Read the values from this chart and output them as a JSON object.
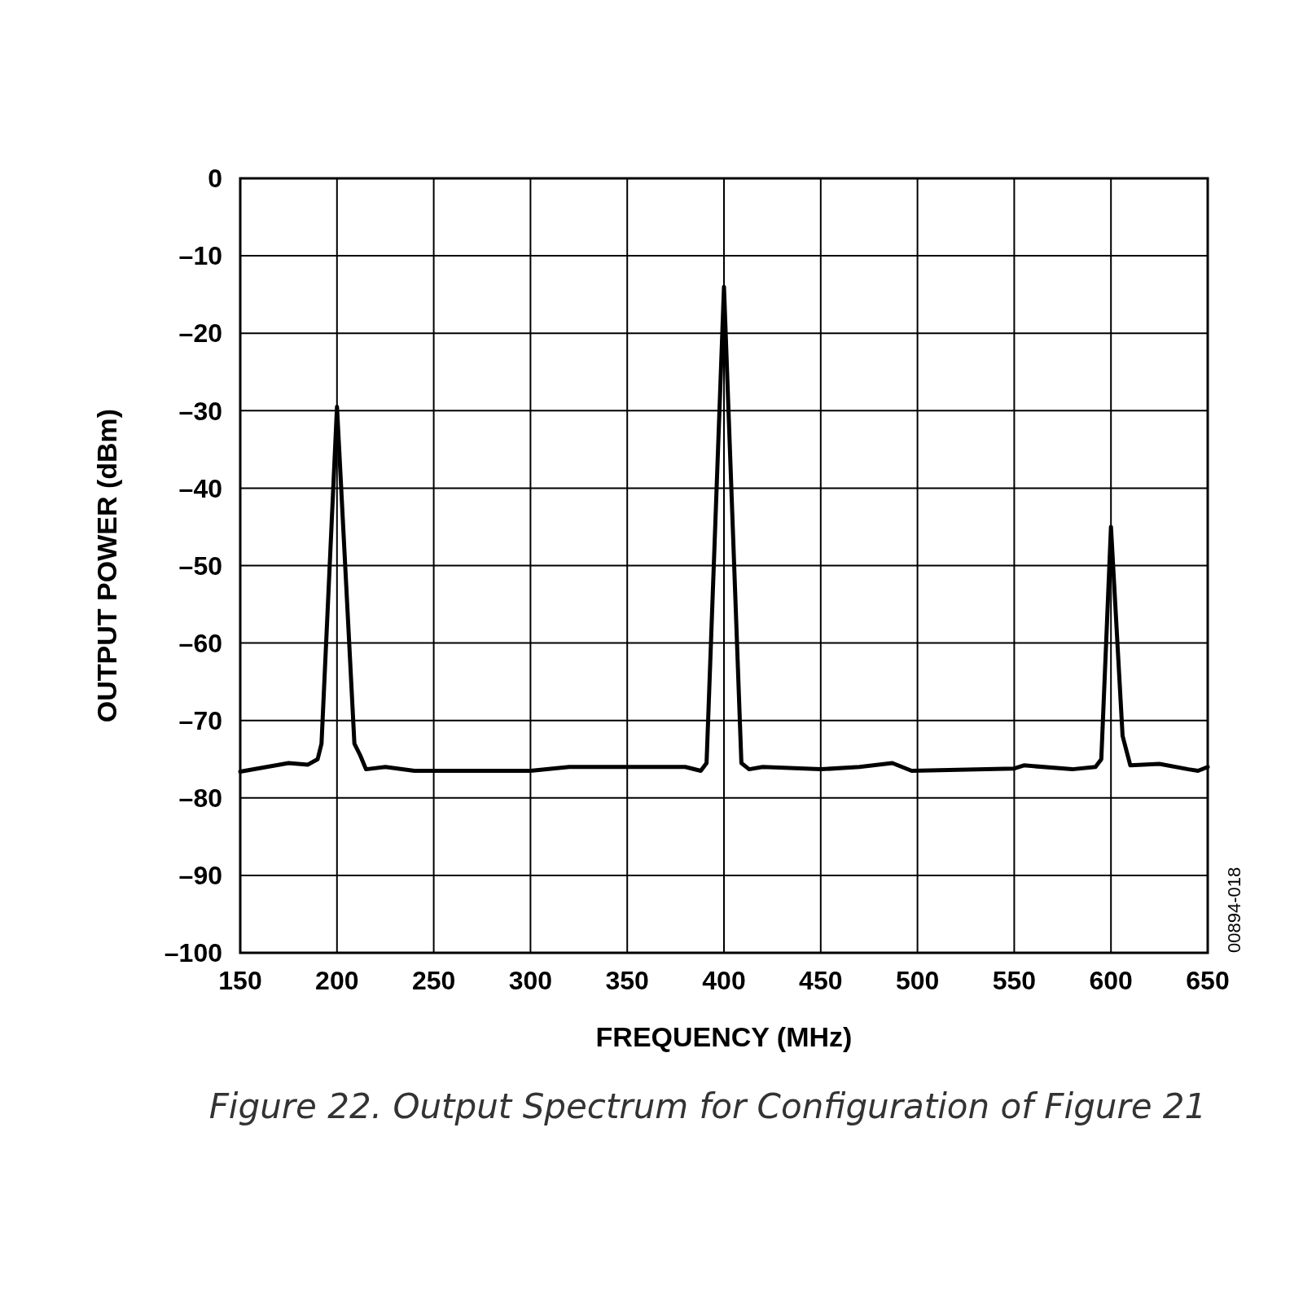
{
  "chart_data": {
    "type": "line",
    "title": "Figure 22. Output Spectrum for Configuration of Figure 21",
    "xlabel": "FREQUENCY (MHz)",
    "ylabel": "OUTPUT POWER (dBm)",
    "annotations": [
      "00894-018"
    ],
    "xlim": [
      150,
      650
    ],
    "ylim": [
      -100,
      0
    ],
    "xticks": [
      150,
      200,
      250,
      300,
      350,
      400,
      450,
      500,
      550,
      600,
      650
    ],
    "yticks": [
      {
        "value": 0,
        "label": "0"
      },
      {
        "value": -10,
        "label": "–10"
      },
      {
        "value": -20,
        "label": "–20"
      },
      {
        "value": -30,
        "label": "–30"
      },
      {
        "value": -40,
        "label": "–40"
      },
      {
        "value": -50,
        "label": "–50"
      },
      {
        "value": -60,
        "label": "–60"
      },
      {
        "value": -70,
        "label": "–70"
      },
      {
        "value": -80,
        "label": "–80"
      },
      {
        "value": -90,
        "label": "–90"
      },
      {
        "value": -100,
        "label": "–100"
      }
    ],
    "grid": true,
    "marker": "none",
    "line_style": "solid",
    "series": [
      {
        "color": "#000000",
        "x": [
          150,
          175,
          185,
          190,
          192,
          200,
          209,
          212,
          215,
          225,
          240,
          300,
          320,
          350,
          380,
          388,
          391,
          400,
          409,
          413,
          420,
          450,
          470,
          487,
          497,
          550,
          555,
          580,
          592,
          595,
          600,
          606,
          610,
          625,
          640,
          645,
          650
        ],
        "values": [
          -76.6,
          -75.5,
          -75.7,
          -75,
          -73,
          -29.5,
          -73,
          -74.5,
          -76.3,
          -76,
          -76.5,
          -76.5,
          -76,
          -76,
          -76,
          -76.5,
          -75.5,
          -14,
          -75.5,
          -76.3,
          -76,
          -76.3,
          -76,
          -75.5,
          -76.5,
          -76.2,
          -75.8,
          -76.3,
          -76,
          -75,
          -45,
          -72,
          -75.8,
          -75.6,
          -76.3,
          -76.5,
          -76
        ]
      }
    ]
  }
}
